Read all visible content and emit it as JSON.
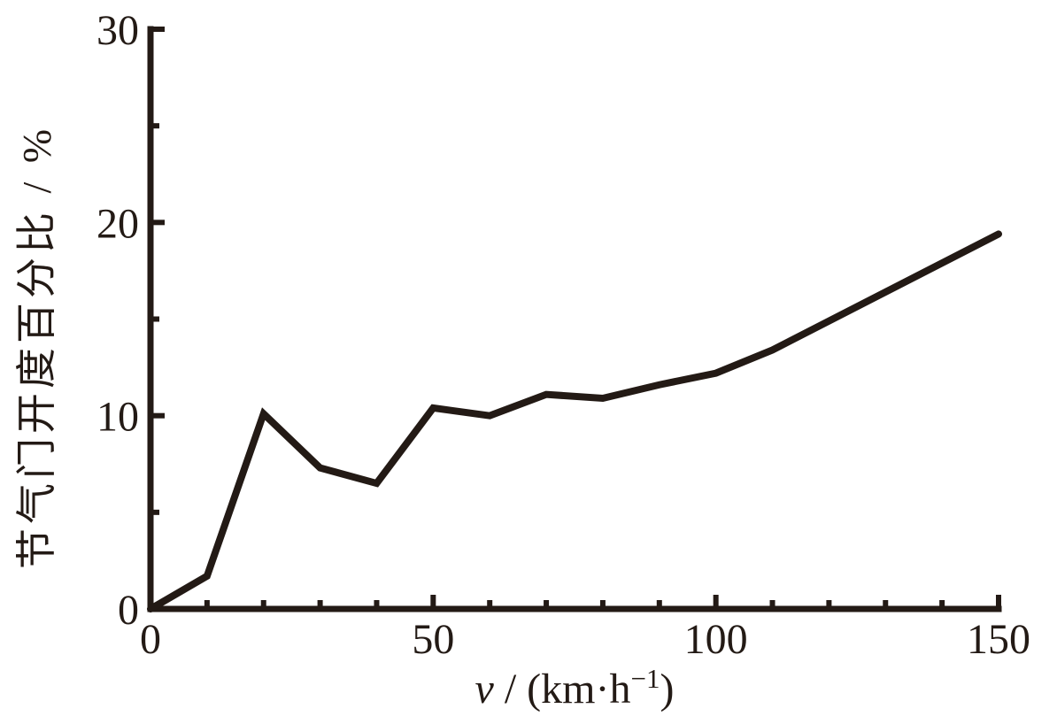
{
  "chart_data": {
    "type": "line",
    "title": "",
    "xlabel": "v / (km·h⁻¹)",
    "xlabel_parts": {
      "var": "v",
      "mid": " / (km·h",
      "sup": "−1",
      "end": ")"
    },
    "ylabel": "节气门开度百分比 / %",
    "x": [
      0,
      10,
      20,
      30,
      40,
      50,
      60,
      70,
      80,
      90,
      100,
      110,
      120,
      130,
      140,
      150
    ],
    "y": [
      0,
      1.7,
      10.1,
      7.3,
      6.5,
      10.4,
      10.0,
      11.1,
      10.9,
      11.6,
      12.2,
      13.4,
      14.9,
      16.4,
      17.9,
      19.4
    ],
    "series_name": "throttle-opening-percentage-vs-speed",
    "xlim": [
      0,
      150
    ],
    "ylim": [
      0,
      30
    ],
    "x_major_ticks": [
      0,
      50,
      100,
      150
    ],
    "x_tick_labels": [
      "0",
      "50",
      "100",
      "150"
    ],
    "x_minor_ticks": [
      10,
      20,
      30,
      40,
      60,
      70,
      80,
      90,
      110,
      120,
      130,
      140
    ],
    "y_major_ticks": [
      0,
      10,
      20,
      30
    ],
    "y_tick_labels": [
      "0",
      "10",
      "20",
      "30"
    ],
    "y_minor_ticks": [
      5,
      15,
      25
    ],
    "grid": false,
    "legend": null,
    "line_color": "#231a15",
    "background_color": "#ffffff"
  }
}
